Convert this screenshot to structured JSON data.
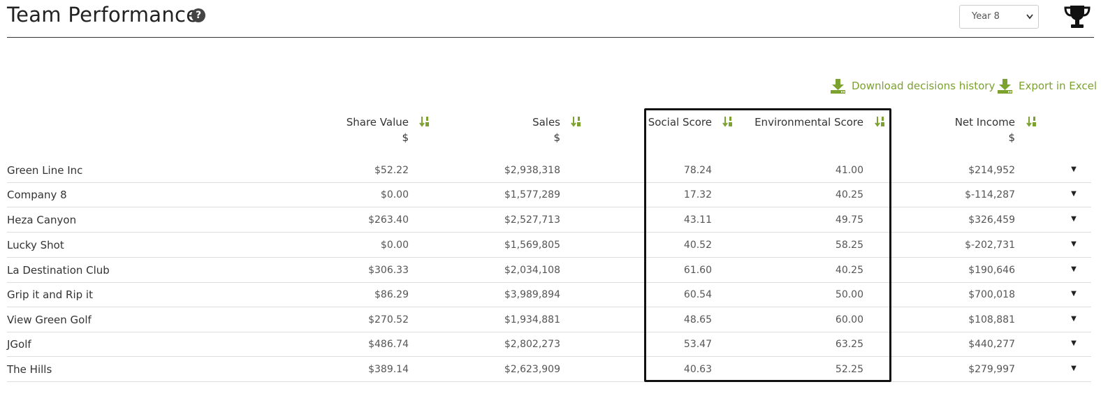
{
  "header": {
    "title": "Team Performance",
    "help_icon": "question-circle-icon",
    "year_select": {
      "value": "Year 8"
    },
    "trophy_icon": "trophy-icon"
  },
  "actions": {
    "download_history_label": "Download decisions history",
    "export_excel_label": "Export in Excel",
    "accent_color": "#7ba22e"
  },
  "columns": [
    {
      "label": "Share Value",
      "unit": "$"
    },
    {
      "label": "Sales",
      "unit": "$"
    },
    {
      "label": "Social Score",
      "unit": ""
    },
    {
      "label": "Environmental Score",
      "unit": ""
    },
    {
      "label": "Net Income",
      "unit": "$"
    }
  ],
  "rows": [
    {
      "team": "Green Line Inc",
      "share_value": "$52.22",
      "sales": "$2,938,318",
      "social": "78.24",
      "environmental": "41.00",
      "net_income": "$214,952"
    },
    {
      "team": "Company 8",
      "share_value": "$0.00",
      "sales": "$1,577,289",
      "social": "17.32",
      "environmental": "40.25",
      "net_income": "$-114,287"
    },
    {
      "team": "Heza Canyon",
      "share_value": "$263.40",
      "sales": "$2,527,713",
      "social": "43.11",
      "environmental": "49.75",
      "net_income": "$326,459"
    },
    {
      "team": "Lucky Shot",
      "share_value": "$0.00",
      "sales": "$1,569,805",
      "social": "40.52",
      "environmental": "58.25",
      "net_income": "$-202,731"
    },
    {
      "team": "La Destination Club",
      "share_value": "$306.33",
      "sales": "$2,034,108",
      "social": "61.60",
      "environmental": "40.25",
      "net_income": "$190,646"
    },
    {
      "team": "Grip it and Rip it",
      "share_value": "$86.29",
      "sales": "$3,989,894",
      "social": "60.54",
      "environmental": "50.00",
      "net_income": "$700,018"
    },
    {
      "team": "View Green Golf",
      "share_value": "$270.52",
      "sales": "$1,934,881",
      "social": "48.65",
      "environmental": "60.00",
      "net_income": "$108,881"
    },
    {
      "team": "JGolf",
      "share_value": "$486.74",
      "sales": "$2,802,273",
      "social": "53.47",
      "environmental": "63.25",
      "net_income": "$440,277"
    },
    {
      "team": "The Hills",
      "share_value": "$389.14",
      "sales": "$2,623,909",
      "social": "40.63",
      "environmental": "52.25",
      "net_income": "$279,997"
    }
  ]
}
